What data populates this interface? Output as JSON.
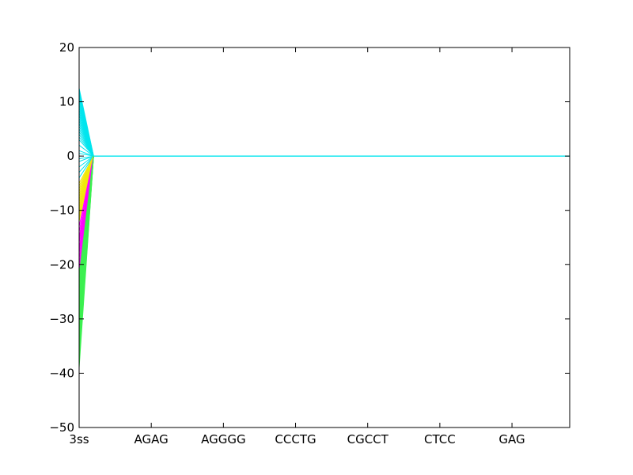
{
  "chart_data": {
    "type": "line",
    "title": "",
    "xlabel": "",
    "ylabel": "",
    "categories": [
      "3ss",
      "AGAG",
      "AGGGG",
      "CCCTG",
      "CGCCT",
      "CTCC",
      "GAG"
    ],
    "x_tick_index": [
      0,
      1,
      2,
      3,
      4,
      5,
      6
    ],
    "x_range": [
      0,
      6.8
    ],
    "y_ticks": [
      20,
      10,
      0,
      -10,
      -20,
      -30,
      -40,
      -50
    ],
    "y_tick_labels": [
      "20",
      "10",
      "0",
      "−10",
      "−20",
      "−30",
      "−40",
      "−50"
    ],
    "ylim": [
      -50,
      20
    ],
    "grid": false,
    "legend": "none",
    "convergence_x": 0.2,
    "convergence_y": 0,
    "groups": [
      {
        "color": "#00e5ee",
        "starts": [
          12.5,
          12,
          11.5,
          11,
          10.5,
          10,
          9.5,
          9,
          8.5,
          8,
          7.5,
          7,
          6.5,
          6,
          5.5,
          5,
          4.5,
          4,
          3.5,
          3,
          2,
          1,
          0.5,
          -0.5,
          -1,
          -2,
          -3,
          -4
        ]
      },
      {
        "color": "#f1e80a",
        "starts": [
          -5,
          -5.5,
          -6,
          -6.5,
          -7,
          -7.5,
          -8,
          -8.5,
          -9,
          -9.5,
          -10,
          -10.5,
          -11,
          -11.5,
          -12
        ]
      },
      {
        "color": "#ff00ff",
        "starts": [
          -13,
          -14,
          -15,
          -15.5,
          -16,
          -17,
          -17.5,
          -18,
          -19,
          -20,
          -21,
          -22
        ]
      },
      {
        "color": "#3cf050",
        "starts": [
          -22,
          -23,
          -24,
          -25,
          -26,
          -27,
          -28,
          -29,
          -30,
          -31,
          -32,
          -33,
          -34,
          -35,
          -36,
          -37,
          -38,
          -39
        ]
      }
    ],
    "baseline": {
      "color": "#00e5ee",
      "from_x": 0.2,
      "to_x": 6.8,
      "y": 0
    }
  }
}
